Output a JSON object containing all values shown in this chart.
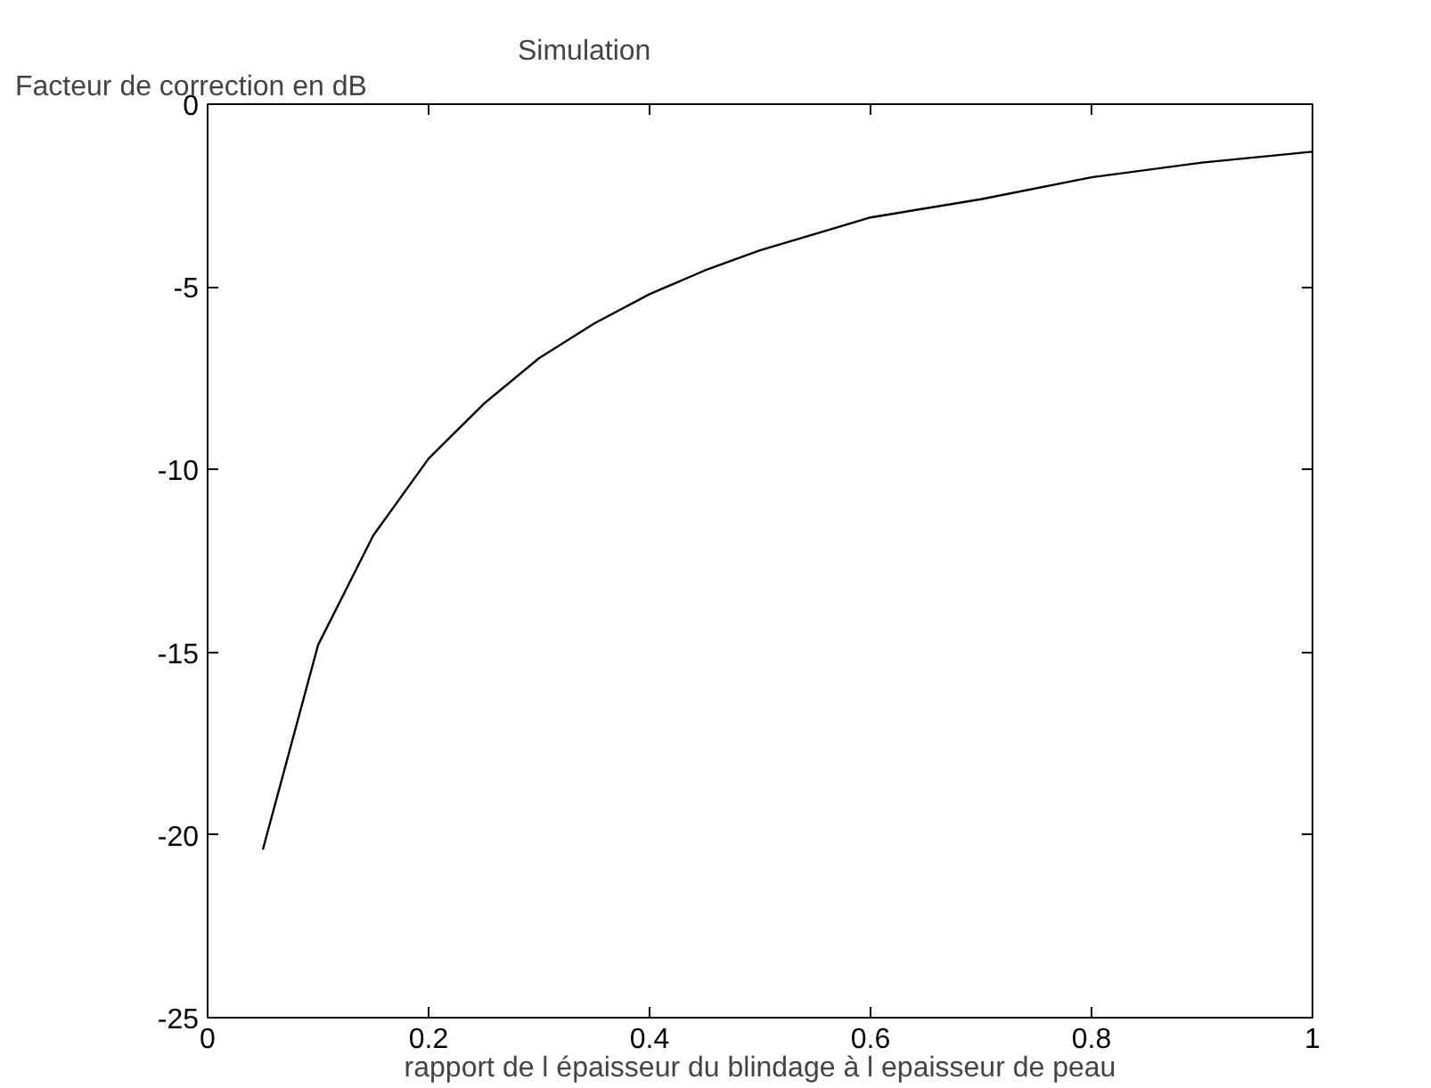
{
  "chart_data": {
    "type": "line",
    "title": "Simulation",
    "ylabel": "Facteur de correction en dB",
    "xlabel": "rapport de l épaisseur du blindage à l epaisseur de peau",
    "x": [
      0.05,
      0.1,
      0.15,
      0.2,
      0.25,
      0.3,
      0.35,
      0.4,
      0.45,
      0.5,
      0.6,
      0.7,
      0.8,
      0.9,
      1.0
    ],
    "series": [
      {
        "color": "#000000",
        "values": [
          -20.4,
          -14.8,
          -11.8,
          -9.7,
          -8.2,
          -6.95,
          -6.0,
          -5.2,
          -4.55,
          -4.0,
          -3.1,
          -2.6,
          -2.0,
          -1.6,
          -1.3
        ]
      }
    ],
    "xlim": [
      0,
      1
    ],
    "ylim": [
      -25,
      0
    ],
    "xticks": [
      0,
      0.2,
      0.4,
      0.6,
      0.8,
      1
    ],
    "yticks": [
      -25,
      -20,
      -15,
      -10,
      -5,
      0
    ],
    "grid": false,
    "marker": "none",
    "line_style": "solid"
  }
}
